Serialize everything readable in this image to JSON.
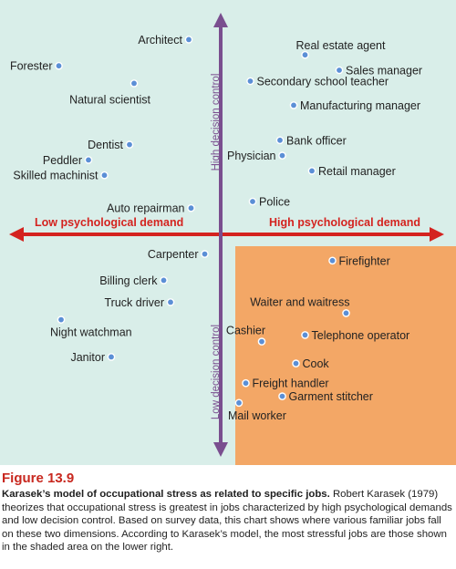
{
  "figure": {
    "colors": {
      "background": "#d9eee9",
      "stress_zone": "#f3a766",
      "point_fill": "#5b8fd6",
      "point_stroke": "#ffffff",
      "horizontal_axis": "#d4231f",
      "vertical_axis": "#7a4e8f"
    },
    "axes": {
      "low_demand_label": "Low psychological demand",
      "high_demand_label": "High psychological demand",
      "high_control_label": "High decision control",
      "low_control_label": "Low decision control"
    },
    "jobs": [
      {
        "name": "Architect",
        "demand": -0.14,
        "control": 0.89
      },
      {
        "name": "Forester",
        "demand": -0.71,
        "control": 0.77
      },
      {
        "name": "Natural scientist",
        "demand": -0.38,
        "control": 0.69
      },
      {
        "name": "Dentist",
        "demand": -0.4,
        "control": 0.41
      },
      {
        "name": "Peddler",
        "demand": -0.58,
        "control": 0.34
      },
      {
        "name": "Skilled machinist",
        "demand": -0.51,
        "control": 0.27
      },
      {
        "name": "Auto repairman",
        "demand": -0.13,
        "control": 0.12
      },
      {
        "name": "Real estate agent",
        "demand": 0.37,
        "control": 0.82
      },
      {
        "name": "Sales manager",
        "demand": 0.52,
        "control": 0.75
      },
      {
        "name": "Secondary school teacher",
        "demand": 0.13,
        "control": 0.7
      },
      {
        "name": "Manufacturing manager",
        "demand": 0.32,
        "control": 0.59
      },
      {
        "name": "Bank officer",
        "demand": 0.26,
        "control": 0.43
      },
      {
        "name": "Physician",
        "demand": 0.27,
        "control": 0.36
      },
      {
        "name": "Retail manager",
        "demand": 0.4,
        "control": 0.29
      },
      {
        "name": "Police",
        "demand": 0.14,
        "control": 0.15
      },
      {
        "name": "Carpenter",
        "demand": -0.07,
        "control": -0.09
      },
      {
        "name": "Billing clerk",
        "demand": -0.25,
        "control": -0.21
      },
      {
        "name": "Truck driver",
        "demand": -0.22,
        "control": -0.31
      },
      {
        "name": "Night watchman",
        "demand": -0.7,
        "control": -0.39
      },
      {
        "name": "Janitor",
        "demand": -0.48,
        "control": -0.56
      },
      {
        "name": "Firefighter",
        "demand": 0.49,
        "control": -0.12
      },
      {
        "name": "Waiter and waitress",
        "demand": 0.55,
        "control": -0.36
      },
      {
        "name": "Cashier",
        "demand": 0.18,
        "control": -0.49
      },
      {
        "name": "Telephone operator",
        "demand": 0.37,
        "control": -0.46
      },
      {
        "name": "Cook",
        "demand": 0.33,
        "control": -0.59
      },
      {
        "name": "Freight handler",
        "demand": 0.11,
        "control": -0.68
      },
      {
        "name": "Garment stitcher",
        "demand": 0.27,
        "control": -0.74
      },
      {
        "name": "Mail worker",
        "demand": 0.08,
        "control": -0.77
      }
    ]
  },
  "caption": {
    "figure_number": "Figure 13.9",
    "title": "Karasek’s model of occupational stress as related to specific jobs.",
    "body": "Robert Karasek (1979) theorizes that occupational stress is greatest in jobs characterized by high psychological demands and low decision control. Based on survey data, this chart shows where various familiar jobs fall on these two dimensions. According to Karasek’s model, the most stressful jobs are those shown in the shaded area on the lower right."
  }
}
